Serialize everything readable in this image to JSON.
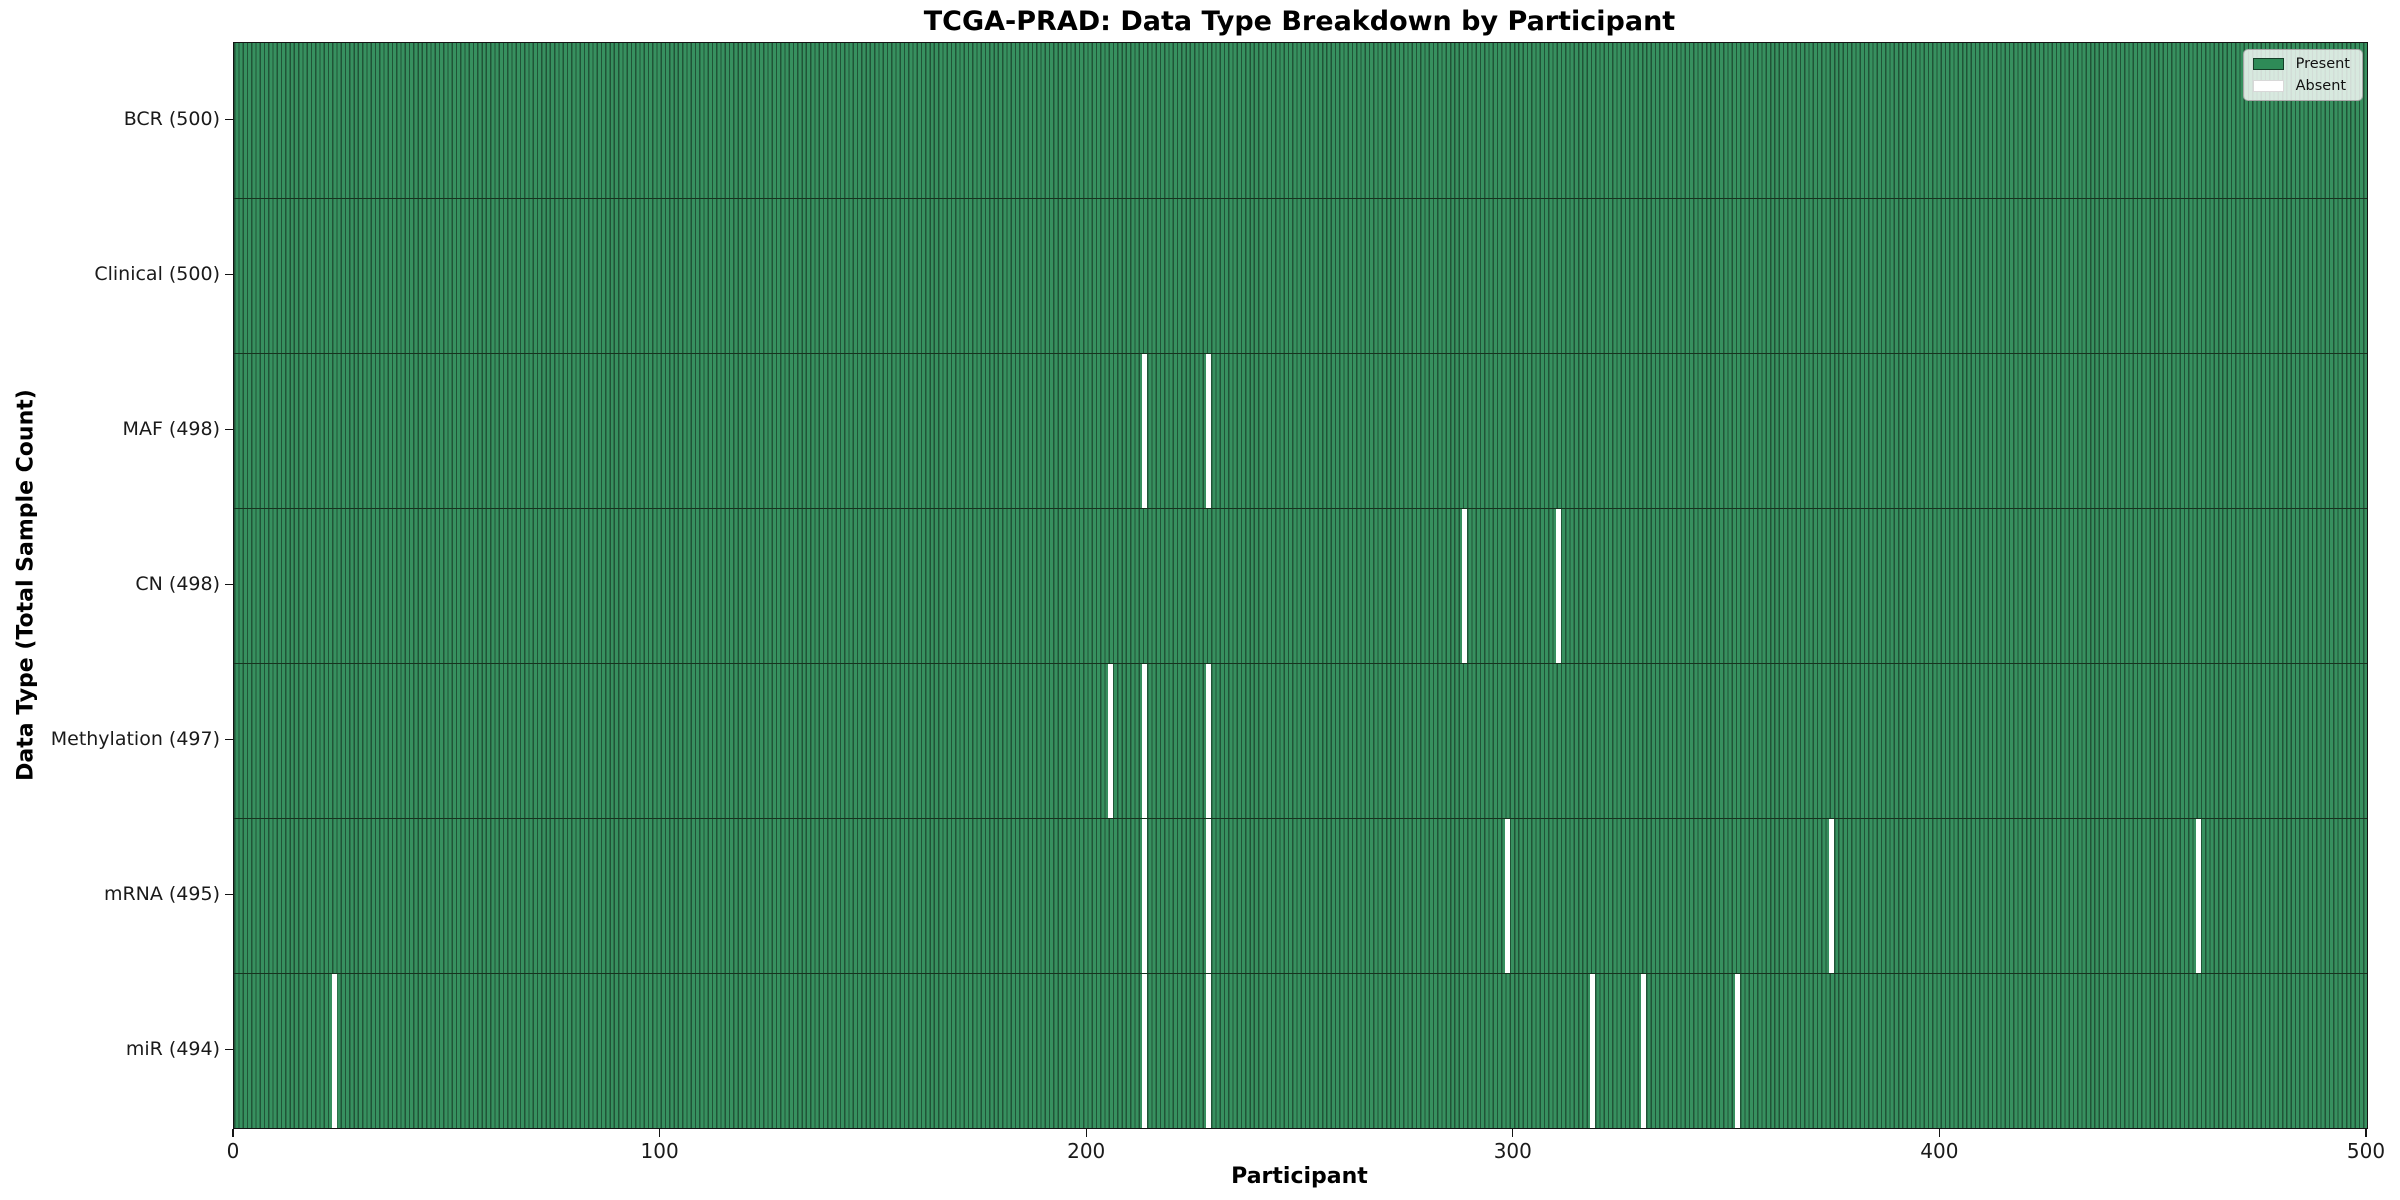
{
  "title": "TCGA-PRAD: Data Type Breakdown by Participant",
  "axes": {
    "xlabel": "Participant",
    "ylabel": "Data Type (Total Sample Count)",
    "x_min": 0,
    "x_max": 500,
    "x_ticks": [
      0,
      100,
      200,
      300,
      400,
      500
    ]
  },
  "legend": {
    "present_label": "Present",
    "absent_label": "Absent",
    "present_color": "#2e8b57",
    "absent_color": "#ffffff"
  },
  "chart_data": {
    "type": "heatmap",
    "title": "TCGA-PRAD: Data Type Breakdown by Participant",
    "xlabel": "Participant",
    "ylabel": "Data Type (Total Sample Count)",
    "x_range": [
      0,
      500
    ],
    "n_participants": 500,
    "legend_position": "upper right",
    "rows": [
      {
        "label": "BCR (500)",
        "data_type": "BCR",
        "total": 500,
        "absent_participants": []
      },
      {
        "label": "Clinical (500)",
        "data_type": "Clinical",
        "total": 500,
        "absent_participants": []
      },
      {
        "label": "MAF (498)",
        "data_type": "MAF",
        "total": 498,
        "absent_participants": [
          213,
          228
        ]
      },
      {
        "label": "CN (498)",
        "data_type": "CN",
        "total": 498,
        "absent_participants": [
          288,
          310
        ]
      },
      {
        "label": "Methylation (497)",
        "data_type": "Methylation",
        "total": 497,
        "absent_participants": [
          205,
          213,
          228
        ]
      },
      {
        "label": "mRNA (495)",
        "data_type": "mRNA",
        "total": 495,
        "absent_participants": [
          213,
          228,
          298,
          374,
          460
        ]
      },
      {
        "label": "miR (494)",
        "data_type": "miR",
        "total": 494,
        "absent_participants": [
          23,
          213,
          228,
          318,
          330,
          352
        ]
      }
    ]
  }
}
